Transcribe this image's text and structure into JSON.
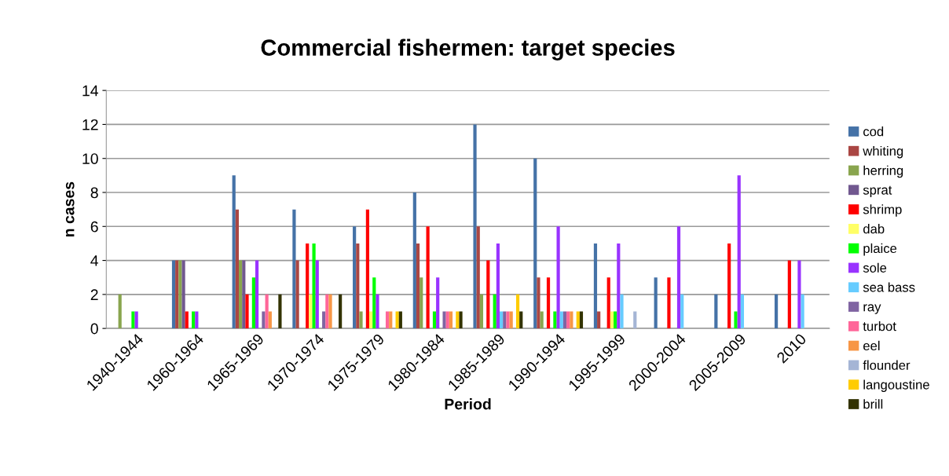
{
  "chart_data": {
    "type": "bar",
    "title": "Commercial fishermen: target species",
    "xlabel": "Period",
    "ylabel": "n cases",
    "categories": [
      "1940-1944",
      "1960-1964",
      "1965-1969",
      "1970-1974",
      "1975-1979",
      "1980-1984",
      "1985-1989",
      "1990-1994",
      "1995-1999",
      "2000-2004",
      "2005-2009",
      "2010"
    ],
    "series": [
      {
        "name": "cod",
        "color": "#4572a7",
        "values": [
          0,
          4,
          9,
          7,
          6,
          8,
          12,
          10,
          5,
          3,
          2,
          2
        ]
      },
      {
        "name": "whiting",
        "color": "#aa4643",
        "values": [
          0,
          4,
          7,
          4,
          5,
          5,
          6,
          3,
          1,
          0,
          0,
          0
        ]
      },
      {
        "name": "herring",
        "color": "#89a54e",
        "values": [
          2,
          4,
          4,
          0,
          1,
          3,
          2,
          1,
          0,
          0,
          0,
          0
        ]
      },
      {
        "name": "sprat",
        "color": "#71588f",
        "values": [
          0,
          4,
          4,
          0,
          0,
          0,
          0,
          0,
          0,
          0,
          0,
          0
        ]
      },
      {
        "name": "shrimp",
        "color": "#ff0000",
        "values": [
          0,
          1,
          2,
          5,
          7,
          6,
          4,
          3,
          3,
          3,
          5,
          4
        ]
      },
      {
        "name": "dab",
        "color": "#ffff66",
        "values": [
          0,
          0,
          0,
          2,
          1,
          0,
          0,
          0,
          1,
          0,
          0,
          0
        ]
      },
      {
        "name": "plaice",
        "color": "#00ff00",
        "values": [
          1,
          1,
          3,
          5,
          3,
          1,
          2,
          1,
          1,
          0,
          1,
          0
        ]
      },
      {
        "name": "sole",
        "color": "#9933ff",
        "values": [
          1,
          1,
          4,
          4,
          2,
          3,
          5,
          6,
          5,
          6,
          9,
          4
        ]
      },
      {
        "name": "sea bass",
        "color": "#66ccff",
        "values": [
          0,
          0,
          0,
          0,
          0,
          0,
          1,
          1,
          2,
          2,
          2,
          2
        ]
      },
      {
        "name": "ray",
        "color": "#8064a2",
        "values": [
          0,
          0,
          1,
          1,
          0,
          1,
          1,
          1,
          0,
          0,
          0,
          0
        ]
      },
      {
        "name": "turbot",
        "color": "#ff6699",
        "values": [
          0,
          0,
          2,
          2,
          1,
          1,
          1,
          1,
          0,
          0,
          0,
          0
        ]
      },
      {
        "name": "eel",
        "color": "#f79646",
        "values": [
          0,
          0,
          1,
          2,
          1,
          1,
          1,
          1,
          0,
          0,
          0,
          0
        ]
      },
      {
        "name": "flounder",
        "color": "#a5b5d5",
        "values": [
          0,
          0,
          0,
          0,
          0,
          0,
          0,
          0,
          1,
          0,
          0,
          0
        ]
      },
      {
        "name": "langoustine",
        "color": "#ffcc00",
        "values": [
          0,
          0,
          0,
          0,
          1,
          1,
          2,
          1,
          0,
          0,
          0,
          0
        ]
      },
      {
        "name": "brill",
        "color": "#333300",
        "values": [
          0,
          0,
          2,
          2,
          1,
          1,
          1,
          1,
          0,
          0,
          0,
          0
        ]
      }
    ],
    "ylim": [
      0,
      14
    ],
    "yticks": [
      0,
      2,
      4,
      6,
      8,
      10,
      12,
      14
    ],
    "grid": "y",
    "legend": "right"
  }
}
